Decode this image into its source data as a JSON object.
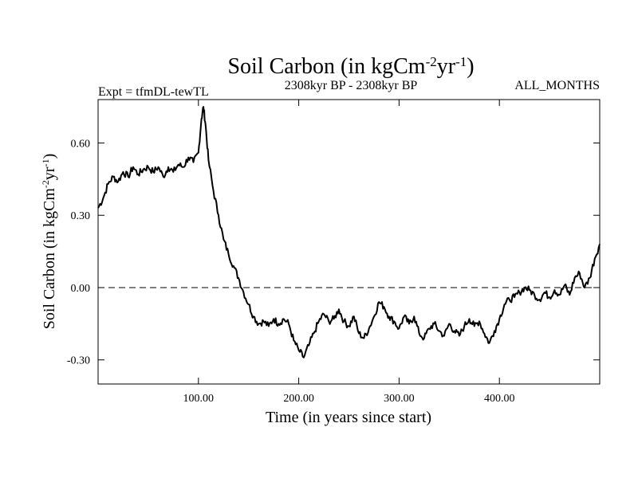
{
  "header": {
    "title_main": "Soil Carbon (in kgCm",
    "title_sup1": "-2",
    "title_mid": "yr",
    "title_sup2": "-1",
    "title_end": ")",
    "expt_label": "Expt = tfmDL-tewTL",
    "period_label": "2308kyr BP - 2308kyr BP",
    "months_label": "ALL_MONTHS"
  },
  "axes": {
    "xlabel": "Time (in years since start)",
    "ylabel_main": "Soil Carbon (in kgCm",
    "ylabel_sup1": "-2",
    "ylabel_mid": "yr",
    "ylabel_sup2": "-1",
    "ylabel_end": ")"
  },
  "chart_data": {
    "type": "line",
    "title": "Soil Carbon (in kgCm-2yr-1)",
    "xlabel": "Time (in years since start)",
    "ylabel": "Soil Carbon (in kgCm-2yr-1)",
    "xlim": [
      0,
      500
    ],
    "ylim": [
      -0.4,
      0.78
    ],
    "x_ticks": [
      100,
      200,
      300,
      400
    ],
    "x_tick_labels": [
      "100.00",
      "200.00",
      "300.00",
      "400.00"
    ],
    "y_ticks": [
      -0.3,
      0,
      0.3,
      0.6
    ],
    "y_tick_labels": [
      "-0.30",
      "0.00",
      "0.30",
      "0.60"
    ],
    "reference_line": {
      "y": 0,
      "style": "dashed"
    },
    "series": [
      {
        "name": "Soil Carbon",
        "x": [
          0,
          5,
          10,
          15,
          20,
          25,
          30,
          35,
          40,
          45,
          50,
          55,
          60,
          65,
          70,
          75,
          80,
          85,
          90,
          95,
          100,
          103,
          105,
          107,
          110,
          115,
          120,
          125,
          130,
          135,
          140,
          145,
          150,
          155,
          160,
          165,
          170,
          175,
          180,
          185,
          190,
          195,
          200,
          205,
          210,
          215,
          220,
          225,
          230,
          235,
          240,
          245,
          250,
          255,
          260,
          265,
          270,
          275,
          280,
          285,
          290,
          295,
          300,
          305,
          310,
          315,
          320,
          325,
          330,
          335,
          340,
          345,
          350,
          355,
          360,
          365,
          370,
          375,
          380,
          385,
          390,
          395,
          400,
          405,
          410,
          415,
          420,
          425,
          430,
          435,
          440,
          445,
          450,
          455,
          460,
          465,
          470,
          475,
          480,
          485,
          490,
          495,
          500
        ],
        "values": [
          0.33,
          0.37,
          0.43,
          0.46,
          0.44,
          0.48,
          0.46,
          0.5,
          0.47,
          0.49,
          0.5,
          0.48,
          0.5,
          0.46,
          0.5,
          0.48,
          0.51,
          0.5,
          0.54,
          0.52,
          0.56,
          0.7,
          0.75,
          0.68,
          0.53,
          0.4,
          0.3,
          0.2,
          0.14,
          0.09,
          0.04,
          -0.02,
          -0.07,
          -0.12,
          -0.15,
          -0.14,
          -0.16,
          -0.13,
          -0.15,
          -0.13,
          -0.15,
          -0.22,
          -0.26,
          -0.29,
          -0.24,
          -0.19,
          -0.14,
          -0.11,
          -0.14,
          -0.13,
          -0.09,
          -0.14,
          -0.16,
          -0.12,
          -0.19,
          -0.21,
          -0.17,
          -0.12,
          -0.06,
          -0.08,
          -0.12,
          -0.14,
          -0.17,
          -0.12,
          -0.15,
          -0.12,
          -0.19,
          -0.21,
          -0.17,
          -0.15,
          -0.18,
          -0.2,
          -0.15,
          -0.18,
          -0.2,
          -0.16,
          -0.13,
          -0.16,
          -0.14,
          -0.19,
          -0.23,
          -0.18,
          -0.13,
          -0.07,
          -0.05,
          -0.04,
          -0.02,
          0.0,
          -0.01,
          -0.03,
          -0.05,
          -0.02,
          -0.04,
          -0.01,
          -0.03,
          0.01,
          -0.03,
          0.04,
          0.06,
          0.0,
          0.04,
          0.12,
          0.18
        ]
      }
    ]
  }
}
